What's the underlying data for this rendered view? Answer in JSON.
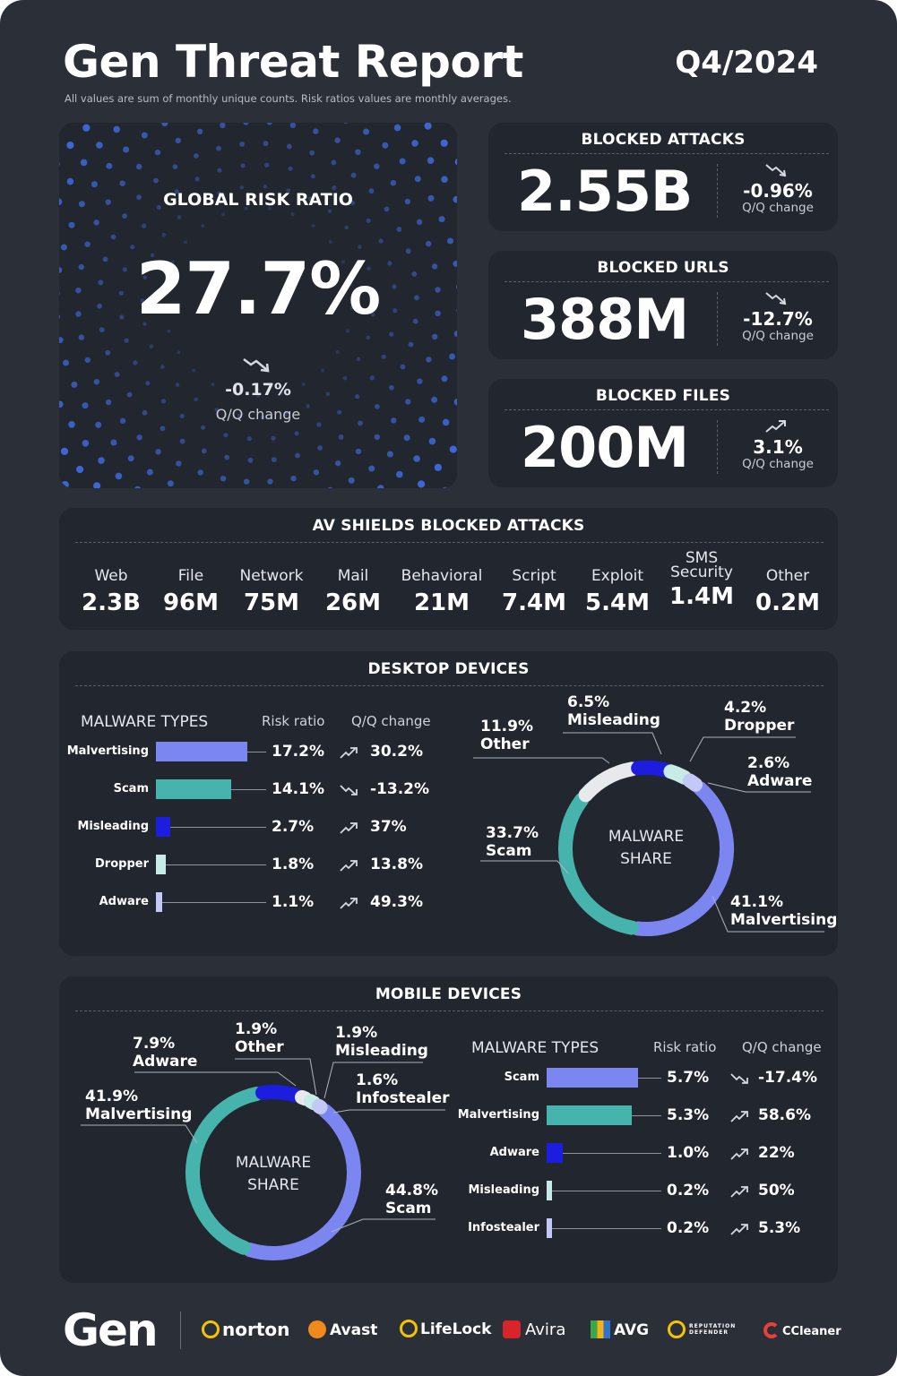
{
  "header": {
    "title": "Gen Threat Report",
    "quarter": "Q4/2024",
    "subtitle": "All values are sum of monthly unique counts. Risk ratios values are monthly averages."
  },
  "global_risk": {
    "label": "GLOBAL RISK RATIO",
    "value": "27.7%",
    "change": "-0.17%",
    "change_caption": "Q/Q change",
    "trend": "down"
  },
  "stats": [
    {
      "label": "BLOCKED ATTACKS",
      "value": "2.55B",
      "change": "-0.96%",
      "caption": "Q/Q change",
      "trend": "down"
    },
    {
      "label": "BLOCKED URLS",
      "value": "388M",
      "change": "-12.7%",
      "caption": "Q/Q change",
      "trend": "down"
    },
    {
      "label": "BLOCKED FILES",
      "value": "200M",
      "change": "3.1%",
      "caption": "Q/Q change",
      "trend": "up"
    }
  ],
  "av_shields": {
    "title": "AV SHIELDS BLOCKED ATTACKS",
    "items": [
      {
        "label": "Web",
        "value": "2.3B"
      },
      {
        "label": "File",
        "value": "96M"
      },
      {
        "label": "Network",
        "value": "75M"
      },
      {
        "label": "Mail",
        "value": "26M"
      },
      {
        "label": "Behavioral",
        "value": "21M"
      },
      {
        "label": "Script",
        "value": "7.4M"
      },
      {
        "label": "Exploit",
        "value": "5.4M"
      },
      {
        "label": "SMS Security",
        "value": "1.4M"
      },
      {
        "label": "Other",
        "value": "0.2M"
      }
    ]
  },
  "desktop": {
    "title": "DESKTOP DEVICES",
    "headers": {
      "types": "MALWARE TYPES",
      "risk": "Risk ratio",
      "change": "Q/Q change"
    },
    "rows": [
      {
        "label": "Malvertising",
        "risk": "17.2%",
        "risk_value": 17.2,
        "change": "30.2%",
        "trend": "up",
        "color": "#7b86f0"
      },
      {
        "label": "Scam",
        "risk": "14.1%",
        "risk_value": 14.1,
        "change": "-13.2%",
        "trend": "down",
        "color": "#46b3ad"
      },
      {
        "label": "Misleading",
        "risk": "2.7%",
        "risk_value": 2.7,
        "change": "37%",
        "trend": "up",
        "color": "#1d1de0"
      },
      {
        "label": "Dropper",
        "risk": "1.8%",
        "risk_value": 1.8,
        "change": "13.8%",
        "trend": "up",
        "color": "#c7ece8"
      },
      {
        "label": "Adware",
        "risk": "1.1%",
        "risk_value": 1.1,
        "change": "49.3%",
        "trend": "up",
        "color": "#c3c8f7"
      }
    ],
    "donut_center": [
      "MALWARE",
      "SHARE"
    ],
    "share": [
      {
        "pct": "41.1%",
        "name": "Malvertising",
        "value": 41.1,
        "color": "#7b86f0"
      },
      {
        "pct": "33.7%",
        "name": "Scam",
        "value": 33.7,
        "color": "#46b3ad"
      },
      {
        "pct": "11.9%",
        "name": "Other",
        "value": 11.9,
        "color": "#e8e9ec"
      },
      {
        "pct": "6.5%",
        "name": "Misleading",
        "value": 6.5,
        "color": "#1d1de0"
      },
      {
        "pct": "4.2%",
        "name": "Dropper",
        "value": 4.2,
        "color": "#c7ece8"
      },
      {
        "pct": "2.6%",
        "name": "Adware",
        "value": 2.6,
        "color": "#c3c8f7"
      }
    ]
  },
  "mobile": {
    "title": "MOBILE DEVICES",
    "headers": {
      "types": "MALWARE TYPES",
      "risk": "Risk ratio",
      "change": "Q/Q change"
    },
    "rows": [
      {
        "label": "Scam",
        "risk": "5.7%",
        "risk_value": 5.7,
        "change": "-17.4%",
        "trend": "down",
        "color": "#7b86f0"
      },
      {
        "label": "Malvertising",
        "risk": "5.3%",
        "risk_value": 5.3,
        "change": "58.6%",
        "trend": "up",
        "color": "#46b3ad"
      },
      {
        "label": "Adware",
        "risk": "1.0%",
        "risk_value": 1.0,
        "change": "22%",
        "trend": "up",
        "color": "#1d1de0"
      },
      {
        "label": "Misleading",
        "risk": "0.2%",
        "risk_value": 0.2,
        "change": "50%",
        "trend": "up",
        "color": "#c7ece8"
      },
      {
        "label": "Infostealer",
        "risk": "0.2%",
        "risk_value": 0.2,
        "change": "5.3%",
        "trend": "up",
        "color": "#c3c8f7"
      }
    ],
    "donut_center": [
      "MALWARE",
      "SHARE"
    ],
    "share": [
      {
        "pct": "44.8%",
        "name": "Scam",
        "value": 44.8,
        "color": "#7b86f0"
      },
      {
        "pct": "41.9%",
        "name": "Malvertising",
        "value": 41.9,
        "color": "#46b3ad"
      },
      {
        "pct": "7.9%",
        "name": "Adware",
        "value": 7.9,
        "color": "#1d1de0"
      },
      {
        "pct": "1.9%",
        "name": "Other",
        "value": 1.9,
        "color": "#e8e9ec"
      },
      {
        "pct": "1.9%",
        "name": "Misleading",
        "value": 1.9,
        "color": "#c7ece8"
      },
      {
        "pct": "1.6%",
        "name": "Infostealer",
        "value": 1.6,
        "color": "#c3c8f7"
      }
    ]
  },
  "footer": {
    "gen": "Gen",
    "brands": [
      "norton",
      "Avast",
      "LifeLock",
      "Avira",
      "AVG",
      "REPUTATION DEFENDER",
      "CCleaner"
    ]
  }
}
